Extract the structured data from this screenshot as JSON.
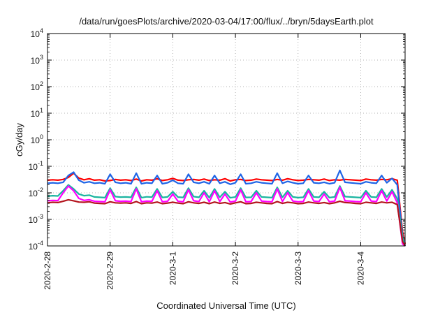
{
  "chart_data": {
    "type": "line",
    "title": "/data/run/goesPlots/archive/2020-03-04/17:00/flux/../bryn/5daysEarth.plot",
    "xlabel": "Coordinated Universal Time (UTC)",
    "ylabel": "cGy/day",
    "y_scale": "log",
    "ylim": [
      0.0001,
      10000
    ],
    "xlim": [
      "2020-02-28",
      "2020-03-04 17:00"
    ],
    "grid": true,
    "x_tick_labels": [
      "2020-2-28",
      "2020-2-29",
      "2020-3-1",
      "2020-3-2",
      "2020-3-3",
      "2020-3-4"
    ],
    "y_tick_labels": [
      {
        "base": "10",
        "exp": "-4"
      },
      {
        "base": "10",
        "exp": "-3"
      },
      {
        "base": "10",
        "exp": "-2"
      },
      {
        "base": "10",
        "exp": "-1"
      },
      {
        "base": "10",
        "exp": "0"
      },
      {
        "base": "10",
        "exp": "1"
      },
      {
        "base": "10",
        "exp": "2"
      },
      {
        "base": "10",
        "exp": "3"
      },
      {
        "base": "10",
        "exp": "4"
      }
    ],
    "x_hours": [
      0,
      2,
      4,
      6,
      8,
      10,
      12,
      14,
      16,
      18,
      20,
      22,
      24,
      26,
      28,
      30,
      32,
      34,
      36,
      38,
      40,
      42,
      44,
      46,
      48,
      50,
      52,
      54,
      56,
      58,
      60,
      62,
      64,
      66,
      68,
      70,
      72,
      74,
      76,
      78,
      80,
      82,
      84,
      86,
      88,
      90,
      92,
      94,
      96,
      98,
      100,
      102,
      104,
      106,
      108,
      110,
      112,
      114,
      116,
      118,
      120,
      122,
      124,
      126,
      128,
      130,
      132,
      134,
      136,
      137
    ],
    "series": [
      {
        "color": "#ff0000",
        "values": [
          0.03,
          0.031,
          0.03,
          0.032,
          0.038,
          0.055,
          0.036,
          0.031,
          0.034,
          0.03,
          0.031,
          0.028,
          0.029,
          0.032,
          0.03,
          0.031,
          0.029,
          0.033,
          0.028,
          0.031,
          0.03,
          0.034,
          0.029,
          0.031,
          0.035,
          0.03,
          0.029,
          0.031,
          0.032,
          0.03,
          0.033,
          0.029,
          0.031,
          0.03,
          0.034,
          0.028,
          0.031,
          0.032,
          0.029,
          0.03,
          0.033,
          0.031,
          0.03,
          0.029,
          0.032,
          0.03,
          0.034,
          0.031,
          0.029,
          0.03,
          0.032,
          0.031,
          0.03,
          0.033,
          0.029,
          0.031,
          0.03,
          0.032,
          0.031,
          0.03,
          0.029,
          0.033,
          0.031,
          0.03,
          0.032,
          0.031,
          0.034,
          0.03,
          0.00035,
          0.00012
        ]
      },
      {
        "color": "#1e64e6",
        "values": [
          0.023,
          0.024,
          0.023,
          0.025,
          0.045,
          0.06,
          0.03,
          0.024,
          0.026,
          0.023,
          0.024,
          0.022,
          0.05,
          0.025,
          0.023,
          0.024,
          0.022,
          0.055,
          0.022,
          0.024,
          0.023,
          0.045,
          0.022,
          0.024,
          0.03,
          0.023,
          0.022,
          0.05,
          0.025,
          0.023,
          0.026,
          0.022,
          0.045,
          0.023,
          0.026,
          0.021,
          0.024,
          0.05,
          0.022,
          0.023,
          0.026,
          0.024,
          0.023,
          0.022,
          0.055,
          0.023,
          0.027,
          0.024,
          0.022,
          0.023,
          0.045,
          0.024,
          0.023,
          0.025,
          0.022,
          0.024,
          0.07,
          0.025,
          0.024,
          0.023,
          0.022,
          0.026,
          0.024,
          0.023,
          0.045,
          0.024,
          0.035,
          0.02,
          0.00025,
          0.0001
        ]
      },
      {
        "color": "#1ab4a0",
        "values": [
          0.0075,
          0.0078,
          0.0076,
          0.012,
          0.02,
          0.014,
          0.009,
          0.0078,
          0.0082,
          0.007,
          0.0068,
          0.0066,
          0.015,
          0.0072,
          0.0069,
          0.007,
          0.0068,
          0.016,
          0.0066,
          0.0071,
          0.0069,
          0.014,
          0.0067,
          0.007,
          0.011,
          0.0069,
          0.0067,
          0.015,
          0.0072,
          0.0068,
          0.012,
          0.0066,
          0.014,
          0.0068,
          0.011,
          0.0065,
          0.007,
          0.015,
          0.0067,
          0.0068,
          0.012,
          0.007,
          0.0068,
          0.0066,
          0.016,
          0.0068,
          0.012,
          0.007,
          0.0066,
          0.0068,
          0.014,
          0.007,
          0.0068,
          0.011,
          0.0066,
          0.007,
          0.018,
          0.0072,
          0.007,
          0.0068,
          0.0066,
          0.012,
          0.007,
          0.0068,
          0.014,
          0.007,
          0.013,
          0.006,
          0.00022,
          0.0001
        ]
      },
      {
        "color": "#ff00ff",
        "values": [
          0.005,
          0.0052,
          0.0051,
          0.01,
          0.018,
          0.012,
          0.0062,
          0.0052,
          0.0055,
          0.0048,
          0.0047,
          0.0046,
          0.013,
          0.005,
          0.0048,
          0.0049,
          0.0047,
          0.014,
          0.0046,
          0.0049,
          0.0048,
          0.012,
          0.0046,
          0.0048,
          0.009,
          0.0048,
          0.0046,
          0.013,
          0.005,
          0.0047,
          0.01,
          0.0046,
          0.012,
          0.0047,
          0.009,
          0.0045,
          0.0049,
          0.013,
          0.0046,
          0.0047,
          0.01,
          0.0049,
          0.0047,
          0.0046,
          0.014,
          0.0047,
          0.01,
          0.0049,
          0.0046,
          0.0047,
          0.012,
          0.0049,
          0.0047,
          0.009,
          0.0046,
          0.0049,
          0.016,
          0.005,
          0.0049,
          0.0047,
          0.0046,
          0.01,
          0.0049,
          0.0047,
          0.012,
          0.0049,
          0.011,
          0.0042,
          0.00012,
          0.0001
        ]
      },
      {
        "color": "#b4141e",
        "values": [
          0.0042,
          0.0044,
          0.0043,
          0.0048,
          0.0055,
          0.005,
          0.0045,
          0.0044,
          0.0046,
          0.0041,
          0.004,
          0.0039,
          0.0046,
          0.0042,
          0.0041,
          0.0042,
          0.004,
          0.0047,
          0.0039,
          0.0042,
          0.0041,
          0.0045,
          0.0039,
          0.0041,
          0.0044,
          0.0041,
          0.0039,
          0.0046,
          0.0042,
          0.004,
          0.0044,
          0.0039,
          0.0045,
          0.004,
          0.0043,
          0.0038,
          0.0042,
          0.0046,
          0.0039,
          0.004,
          0.0044,
          0.0042,
          0.004,
          0.0039,
          0.0047,
          0.004,
          0.0044,
          0.0042,
          0.0039,
          0.004,
          0.0045,
          0.0042,
          0.004,
          0.0043,
          0.0039,
          0.0042,
          0.0048,
          0.0043,
          0.0042,
          0.004,
          0.0039,
          0.0044,
          0.0042,
          0.004,
          0.0045,
          0.0042,
          0.0044,
          0.0036,
          0.00015,
          0.0001
        ]
      }
    ]
  }
}
